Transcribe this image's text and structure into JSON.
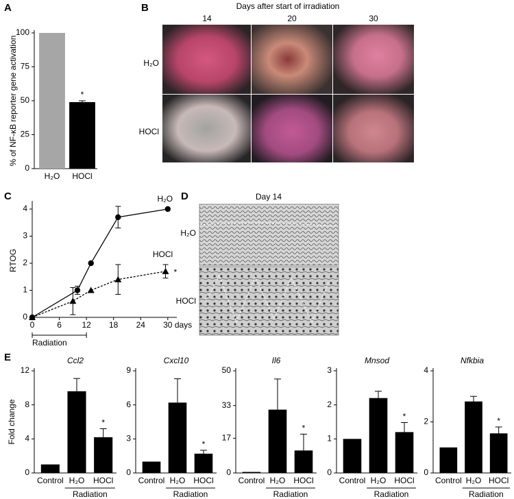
{
  "chart_data": [
    {
      "type": "bar",
      "ylabel": "% of NF-κB reporter gene activation",
      "categories": [
        "H₂O",
        "HOCl"
      ],
      "values": [
        100,
        49
      ],
      "errors": [
        0,
        1
      ],
      "colors": [
        "#a6a6a6",
        "#000000"
      ],
      "significance": [
        null,
        "*"
      ],
      "ylim": [
        0,
        100
      ],
      "yticks": [
        0,
        25,
        50,
        75,
        100
      ]
    },
    {
      "type": "line",
      "ylabel": "RTOG",
      "xlabel": "days",
      "xlim": [
        0,
        32
      ],
      "xticks": [
        0,
        6,
        12,
        18,
        24,
        30
      ],
      "ylim": [
        0,
        4.2
      ],
      "yticks": [
        0,
        1,
        2,
        3,
        4
      ],
      "series": [
        {
          "name": "H₂O",
          "color": "#000000",
          "marker": "circle",
          "dashed": false,
          "x": [
            0,
            10,
            13,
            19,
            30
          ],
          "values": [
            0,
            1,
            2,
            3.7,
            4
          ],
          "errors": [
            0,
            0.15,
            0,
            0.4,
            0
          ]
        },
        {
          "name": "HOCl",
          "color": "#000000",
          "marker": "triangle",
          "dashed": true,
          "significance": "*",
          "x": [
            0,
            9,
            13,
            19,
            29.5
          ],
          "values": [
            0,
            0.6,
            1,
            1.4,
            1.7
          ],
          "errors": [
            0,
            0.5,
            0,
            0.55,
            0.25
          ]
        }
      ],
      "bracket": {
        "label": "Radiation",
        "range": [
          0,
          12
        ]
      }
    },
    {
      "type": "bar",
      "title": "Ccl2",
      "ylabel": "Fold change",
      "group_label": "Radiation",
      "categories": [
        "Control",
        "H₂O",
        "HOCl"
      ],
      "values": [
        1,
        9.6,
        4.2
      ],
      "errors": [
        0,
        1.5,
        1.0
      ],
      "colors": [
        "#000000",
        "#000000",
        "#000000"
      ],
      "significance": [
        null,
        null,
        "*"
      ],
      "ylim": [
        0,
        12
      ],
      "yticks": [
        0,
        4,
        8,
        12
      ]
    },
    {
      "type": "bar",
      "title": "Cxcl10",
      "group_label": "Radiation",
      "categories": [
        "Control",
        "H₂O",
        "HOCl"
      ],
      "values": [
        1,
        6.2,
        1.7
      ],
      "errors": [
        0,
        2.1,
        0.3
      ],
      "colors": [
        "#000000",
        "#000000",
        "#000000"
      ],
      "significance": [
        null,
        null,
        "*"
      ],
      "ylim": [
        0,
        9
      ],
      "yticks": [
        0,
        3,
        6,
        9
      ]
    },
    {
      "type": "bar",
      "title": "Il6",
      "group_label": "Radiation",
      "categories": [
        "Control",
        "H₂O",
        "HOCl"
      ],
      "values": [
        0.5,
        31,
        11
      ],
      "errors": [
        0,
        15,
        8
      ],
      "colors": [
        "#000000",
        "#000000",
        "#000000"
      ],
      "significance": [
        null,
        null,
        "*"
      ],
      "ylim": [
        0,
        50
      ],
      "yticks": [
        0,
        17,
        33,
        50
      ]
    },
    {
      "type": "bar",
      "title": "Mnsod",
      "group_label": "Radiation",
      "categories": [
        "Control",
        "H₂O",
        "HOCl"
      ],
      "values": [
        1,
        2.2,
        1.2
      ],
      "errors": [
        0,
        0.2,
        0.28
      ],
      "colors": [
        "#000000",
        "#000000",
        "#000000"
      ],
      "significance": [
        null,
        null,
        "*"
      ],
      "ylim": [
        0,
        3
      ],
      "yticks": [
        0,
        1,
        2,
        3
      ]
    },
    {
      "type": "bar",
      "title": "Nfkbia",
      "group_label": "Radiation",
      "categories": [
        "Control",
        "H₂O",
        "HOCl"
      ],
      "values": [
        1,
        2.8,
        1.55
      ],
      "errors": [
        0,
        0.2,
        0.25
      ],
      "colors": [
        "#000000",
        "#000000",
        "#000000"
      ],
      "significance": [
        null,
        null,
        "*"
      ],
      "ylim": [
        0,
        4
      ],
      "yticks": [
        0,
        2,
        4
      ]
    }
  ],
  "panels": {
    "letters": [
      "A",
      "B",
      "C",
      "D",
      "E"
    ],
    "b": {
      "title": "Days after start of irradiation",
      "columns": [
        "14",
        "20",
        "30"
      ],
      "rows": [
        "H₂O",
        "HOCl"
      ]
    },
    "d": {
      "title": "Day 14",
      "rows": [
        "H₂O",
        "HOCl"
      ]
    }
  }
}
